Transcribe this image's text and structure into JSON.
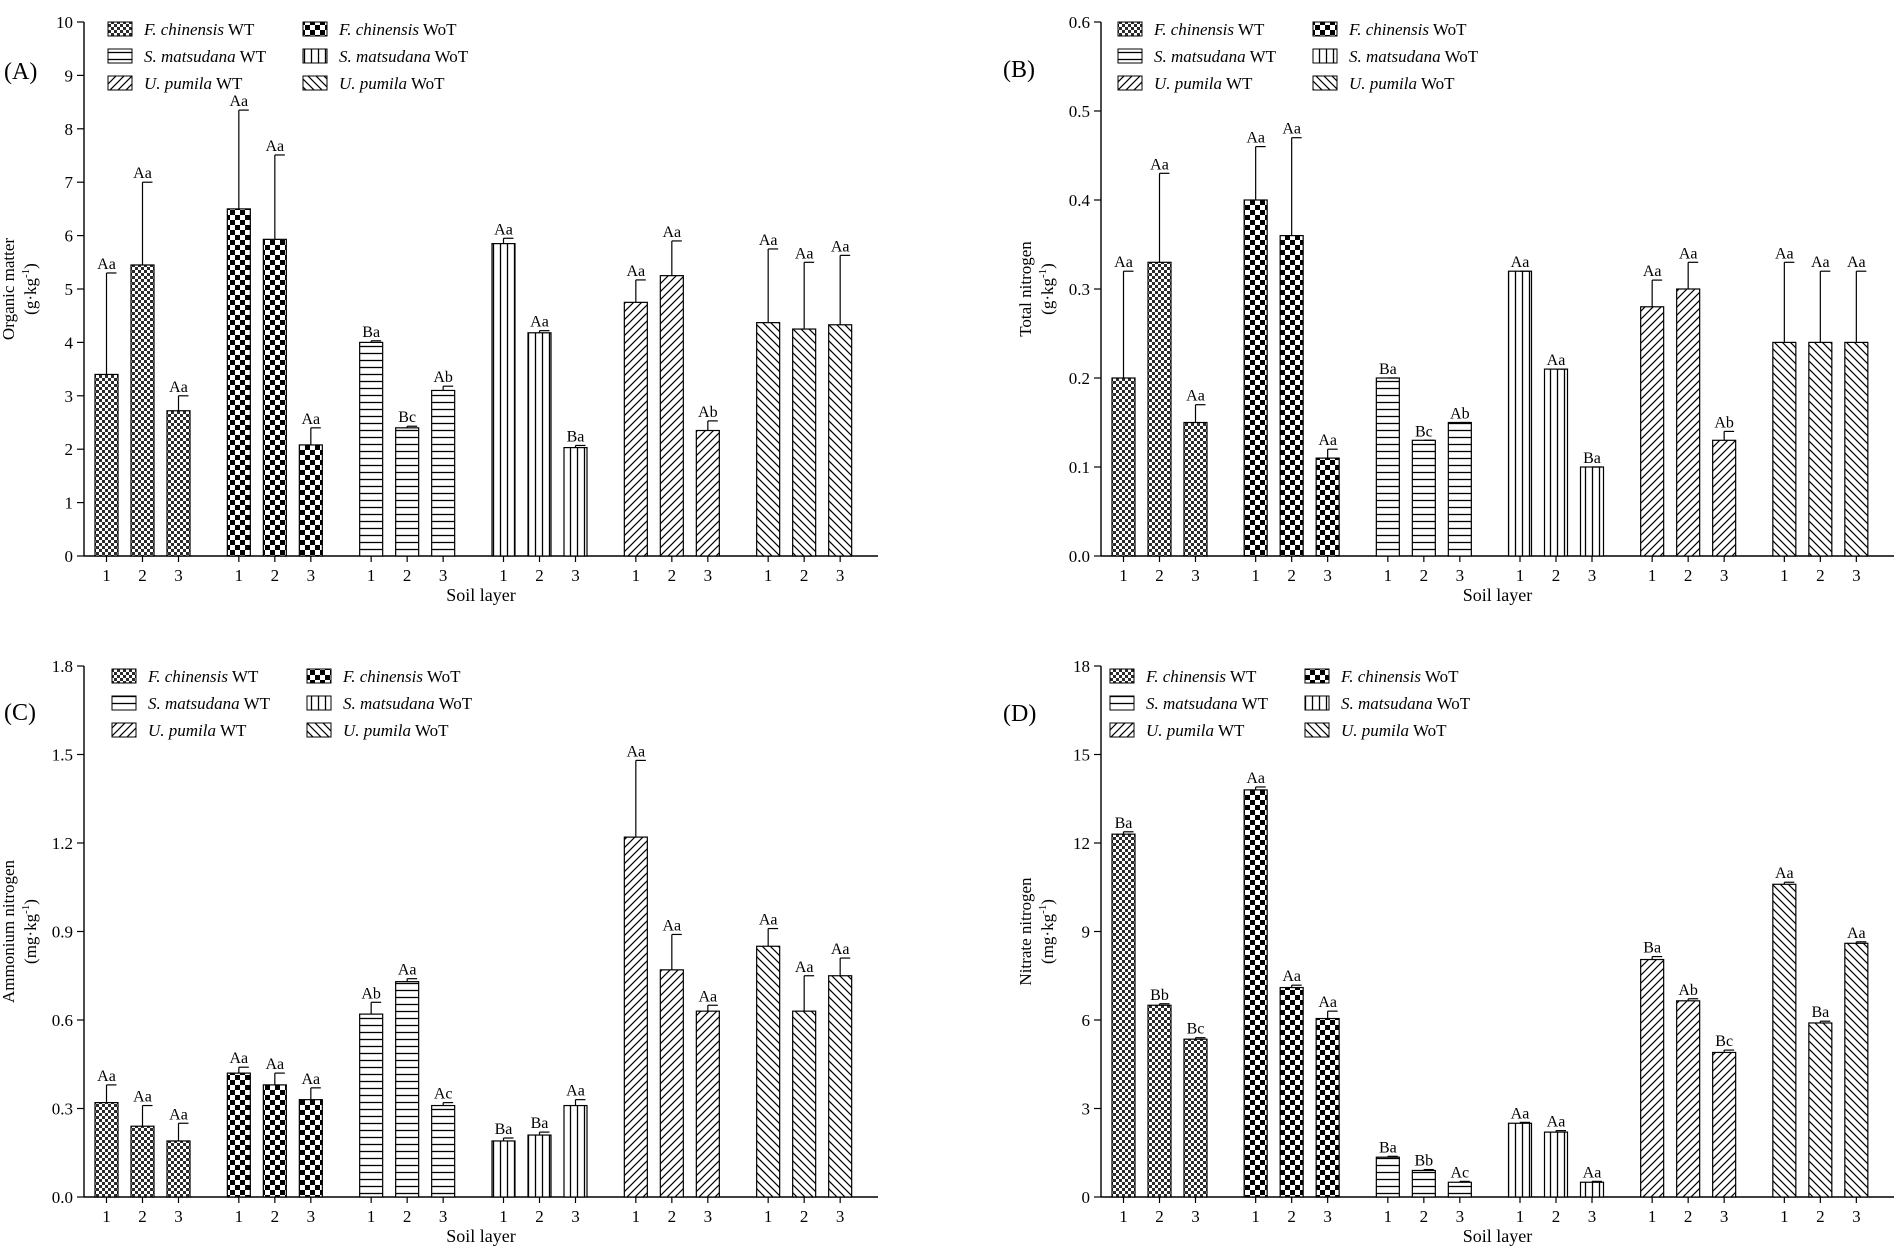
{
  "groups": [
    {
      "code": "fc_wt",
      "genus": "F. chinensis",
      "tag": "WT",
      "pattern": "pat-fc-wt"
    },
    {
      "code": "fc_wot",
      "genus": "F. chinensis",
      "tag": "WoT",
      "pattern": "pat-fc-wot"
    },
    {
      "code": "sm_wt",
      "genus": "S. matsudana",
      "tag": "WT",
      "pattern": "pat-sm-wt"
    },
    {
      "code": "sm_wot",
      "genus": "S. matsudana",
      "tag": "WoT",
      "pattern": "pat-sm-wot"
    },
    {
      "code": "up_wt",
      "genus": "U. pumila",
      "tag": "WT",
      "pattern": "pat-up-wt"
    },
    {
      "code": "up_wot",
      "genus": "U. pumila",
      "tag": "WoT",
      "pattern": "pat-up-wot"
    }
  ],
  "chart_data": [
    {
      "panel": "(A)",
      "type": "bar",
      "xlabel": "Soil layer",
      "ylabel": "Organic matter",
      "yunit_base": "(g·kg",
      "yunit_exp": "-1",
      "yunit_close": ")",
      "ylim": [
        0,
        10
      ],
      "yticks": [
        "0",
        "1",
        "2",
        "3",
        "4",
        "5",
        "6",
        "7",
        "8",
        "9",
        "10"
      ],
      "categories": [
        "1",
        "2",
        "3"
      ],
      "series": [
        {
          "name": "F. chinensis WT",
          "values": [
            3.4,
            5.45,
            2.72
          ],
          "errors": [
            1.9,
            1.55,
            0.28
          ],
          "labels": [
            "Aa",
            "Aa",
            "Aa"
          ]
        },
        {
          "name": "F. chinensis WoT",
          "values": [
            6.5,
            5.93,
            2.08
          ],
          "errors": [
            1.85,
            1.58,
            0.32
          ],
          "labels": [
            "Aa",
            "Aa",
            "Aa"
          ]
        },
        {
          "name": "S. matsudana WT",
          "values": [
            4.0,
            2.4,
            3.1
          ],
          "errors": [
            0.03,
            0.03,
            0.08
          ],
          "labels": [
            "Ba",
            "Bc",
            "Ab"
          ]
        },
        {
          "name": "S. matsudana WoT",
          "values": [
            5.85,
            4.18,
            2.03
          ],
          "errors": [
            0.1,
            0.04,
            0.04
          ],
          "labels": [
            "Aa",
            "Aa",
            "Ba"
          ]
        },
        {
          "name": "U. pumila WT",
          "values": [
            4.75,
            5.25,
            2.35
          ],
          "errors": [
            0.42,
            0.65,
            0.18
          ],
          "labels": [
            "Aa",
            "Aa",
            "Ab"
          ]
        },
        {
          "name": "U. pumila WoT",
          "values": [
            4.37,
            4.25,
            4.33
          ],
          "errors": [
            1.38,
            1.25,
            1.3
          ],
          "labels": [
            "Aa",
            "Aa",
            "Aa"
          ]
        }
      ]
    },
    {
      "panel": "(B)",
      "type": "bar",
      "xlabel": "Soil layer",
      "ylabel": "Total nitrogen",
      "yunit_base": "(g·kg",
      "yunit_exp": "-1",
      "yunit_close": ")",
      "ylim": [
        0,
        0.6
      ],
      "yticks": [
        "0.0",
        "0.1",
        "0.2",
        "0.3",
        "0.4",
        "0.5",
        "0.6"
      ],
      "categories": [
        "1",
        "2",
        "3"
      ],
      "series": [
        {
          "name": "F. chinensis WT",
          "values": [
            0.2,
            0.33,
            0.15
          ],
          "errors": [
            0.12,
            0.1,
            0.02
          ],
          "labels": [
            "Aa",
            "Aa",
            "Aa"
          ]
        },
        {
          "name": "F. chinensis WoT",
          "values": [
            0.4,
            0.36,
            0.11
          ],
          "errors": [
            0.06,
            0.11,
            0.01
          ],
          "labels": [
            "Aa",
            "Aa",
            "Aa"
          ]
        },
        {
          "name": "S. matsudana WT",
          "values": [
            0.2,
            0.13,
            0.15
          ],
          "errors": [
            0.0,
            0.0,
            0.0
          ],
          "labels": [
            "Ba",
            "Bc",
            "Ab"
          ]
        },
        {
          "name": "S. matsudana WoT",
          "values": [
            0.32,
            0.21,
            0.1
          ],
          "errors": [
            0.0,
            0.0,
            0.0
          ],
          "labels": [
            "Aa",
            "Aa",
            "Ba"
          ]
        },
        {
          "name": "U. pumila WT",
          "values": [
            0.28,
            0.3,
            0.13
          ],
          "errors": [
            0.03,
            0.03,
            0.01
          ],
          "labels": [
            "Aa",
            "Aa",
            "Ab"
          ]
        },
        {
          "name": "U. pumila WoT",
          "values": [
            0.24,
            0.24,
            0.24
          ],
          "errors": [
            0.09,
            0.08,
            0.08
          ],
          "labels": [
            "Aa",
            "Aa",
            "Aa"
          ]
        }
      ]
    },
    {
      "panel": "(C)",
      "type": "bar",
      "xlabel": "Soil layer",
      "ylabel": "Ammonium nitrogen",
      "yunit_base": "(mg·kg",
      "yunit_exp": "-1",
      "yunit_close": ")",
      "ylim": [
        0,
        1.8
      ],
      "yticks": [
        "0.0",
        "0.3",
        "0.6",
        "0.9",
        "1.2",
        "1.5",
        "1.8"
      ],
      "categories": [
        "1",
        "2",
        "3"
      ],
      "series": [
        {
          "name": "F. chinensis WT",
          "values": [
            0.32,
            0.24,
            0.19
          ],
          "errors": [
            0.06,
            0.07,
            0.06
          ],
          "labels": [
            "Aa",
            "Aa",
            "Aa"
          ]
        },
        {
          "name": "F. chinensis WoT",
          "values": [
            0.42,
            0.38,
            0.33
          ],
          "errors": [
            0.02,
            0.04,
            0.04
          ],
          "labels": [
            "Aa",
            "Aa",
            "Aa"
          ]
        },
        {
          "name": "S. matsudana WT",
          "values": [
            0.62,
            0.73,
            0.31
          ],
          "errors": [
            0.04,
            0.01,
            0.01
          ],
          "labels": [
            "Ab",
            "Aa",
            "Ac"
          ]
        },
        {
          "name": "S. matsudana WoT",
          "values": [
            0.19,
            0.21,
            0.31
          ],
          "errors": [
            0.01,
            0.01,
            0.02
          ],
          "labels": [
            "Ba",
            "Ba",
            "Aa"
          ]
        },
        {
          "name": "U. pumila WT",
          "values": [
            1.22,
            0.77,
            0.63
          ],
          "errors": [
            0.26,
            0.12,
            0.02
          ],
          "labels": [
            "Aa",
            "Aa",
            "Aa"
          ]
        },
        {
          "name": "U. pumila WoT",
          "values": [
            0.85,
            0.63,
            0.75
          ],
          "errors": [
            0.06,
            0.12,
            0.06
          ],
          "labels": [
            "Aa",
            "Aa",
            "Aa"
          ]
        }
      ]
    },
    {
      "panel": "(D)",
      "type": "bar",
      "xlabel": "Soil layer",
      "ylabel": "Nitrate nitrogen",
      "yunit_base": "(mg·kg",
      "yunit_exp": "-1",
      "yunit_close": ")",
      "ylim": [
        0,
        18
      ],
      "yticks": [
        "0",
        "3",
        "6",
        "9",
        "12",
        "15",
        "18"
      ],
      "categories": [
        "1",
        "2",
        "3"
      ],
      "series": [
        {
          "name": "F. chinensis WT",
          "values": [
            12.3,
            6.5,
            5.35
          ],
          "errors": [
            0.08,
            0.05,
            0.05
          ],
          "labels": [
            "Ba",
            "Bb",
            "Bc"
          ]
        },
        {
          "name": "F. chinensis WoT",
          "values": [
            13.8,
            7.1,
            6.05
          ],
          "errors": [
            0.1,
            0.08,
            0.25
          ],
          "labels": [
            "Aa",
            "Aa",
            "Aa"
          ]
        },
        {
          "name": "S. matsudana WT",
          "values": [
            1.35,
            0.9,
            0.5
          ],
          "errors": [
            0.03,
            0.03,
            0.03
          ],
          "labels": [
            "Ba",
            "Bb",
            "Ac"
          ]
        },
        {
          "name": "S. matsudana WoT",
          "values": [
            2.5,
            2.2,
            0.5
          ],
          "errors": [
            0.03,
            0.05,
            0.03
          ],
          "labels": [
            "Aa",
            "Aa",
            "Aa"
          ]
        },
        {
          "name": "U. pumila WT",
          "values": [
            8.05,
            6.65,
            4.9
          ],
          "errors": [
            0.1,
            0.07,
            0.08
          ],
          "labels": [
            "Ba",
            "Ab",
            "Bc"
          ]
        },
        {
          "name": "U. pumila WoT",
          "values": [
            10.6,
            5.9,
            8.6
          ],
          "errors": [
            0.07,
            0.06,
            0.05
          ],
          "labels": [
            "Aa",
            "Ba",
            "Aa"
          ]
        }
      ]
    }
  ]
}
